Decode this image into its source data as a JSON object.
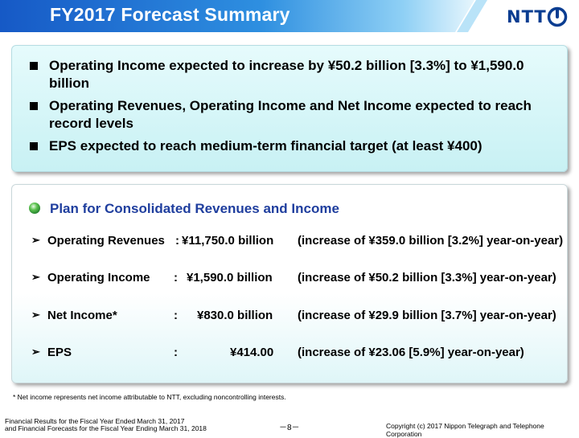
{
  "header": {
    "title": "FY2017 Forecast Summary",
    "logo_text": "NTT"
  },
  "summary": {
    "items": [
      "Operating Income expected to increase by ¥50.2 billion [3.3%] to ¥1,590.0 billion",
      "Operating Revenues, Operating Income and Net Income expected to reach record levels",
      "EPS expected to reach medium-term financial target (at least ¥400)"
    ]
  },
  "plan": {
    "title": "Plan for Consolidated Revenues and Income",
    "rows": [
      {
        "label": "Operating Revenues",
        "colon": ":",
        "value": "¥11,750.0 billion",
        "change": "(increase of ¥359.0 billion [3.2%] year-on-year)"
      },
      {
        "label": "Operating Income",
        "colon": ":",
        "value": "¥1,590.0 billion",
        "change": "(increase of ¥50.2 billion [3.3%] year-on-year)"
      },
      {
        "label": "Net Income*",
        "colon": ":",
        "value": "¥830.0 billion",
        "change": "(increase of ¥29.9 billion [3.7%] year-on-year)"
      },
      {
        "label": "EPS",
        "colon": ":",
        "value": "¥414.00",
        "change": "(increase of ¥23.06 [5.9%] year-on-year)"
      }
    ]
  },
  "footnote": "* Net income represents net income attributable to NTT, excluding noncontrolling interests.",
  "footer": {
    "left_line1": "Financial Results for the Fiscal Year Ended March 31, 2017",
    "left_line2": "and Financial Forecasts for the Fiscal Year Ending March 31, 2018",
    "page_number": "－8－",
    "copyright": "Copyright (c) 2017 Nippon Telegraph and Telephone Corporation"
  },
  "colors": {
    "title_bar": "#1565c8",
    "plan_title": "#1f3e9e",
    "logo": "#0a3d91",
    "summary_bg": "#d4f5f7"
  },
  "icons": {
    "summary_bullet": "square-bullet-icon",
    "plan_bullet": "green-sphere-icon",
    "row_bullet": "arrowhead-icon",
    "logo_mark": "ntt-logo-icon"
  }
}
